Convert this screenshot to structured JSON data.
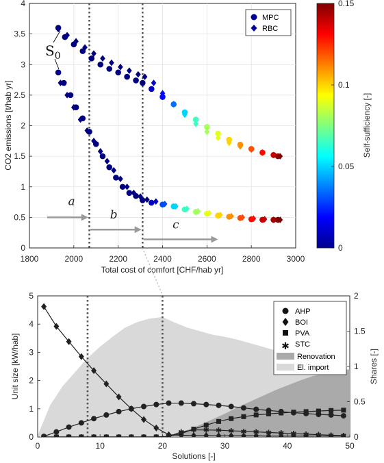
{
  "chart_data": [
    {
      "type": "scatter",
      "xlabel": "Total cost of comfort [CHF/hab yr]",
      "ylabel": "CO2 emissions [t/hab yr]",
      "xlim": [
        1800,
        3000
      ],
      "ylim": [
        0,
        4
      ],
      "xticks": [
        1800,
        2000,
        2200,
        2400,
        2600,
        2800,
        3000
      ],
      "yticks": [
        0,
        0.5,
        1,
        1.5,
        2,
        2.5,
        3,
        3.5,
        4
      ],
      "grid": true,
      "legend_position": "top-right",
      "colorbar": {
        "label": "Self-sufficiency [-]",
        "min": 0,
        "max": 0.15,
        "ticks": [
          0,
          0.05,
          0.1,
          0.15
        ]
      },
      "series": [
        {
          "name": "MPC",
          "marker": "circle",
          "upper": {
            "x": [
              1930,
              1960,
              2000,
              2040,
              2080,
              2120,
              2160,
              2200,
              2240,
              2280,
              2310,
              2350,
              2400,
              2450,
              2500,
              2550,
              2600,
              2650,
              2700,
              2750,
              2800,
              2850,
              2900,
              2920
            ],
            "y": [
              3.6,
              3.45,
              3.33,
              3.22,
              3.1,
              3.0,
              2.93,
              2.87,
              2.8,
              2.74,
              2.7,
              2.6,
              2.47,
              2.35,
              2.22,
              2.1,
              1.98,
              1.87,
              1.77,
              1.69,
              1.62,
              1.56,
              1.52,
              1.5
            ],
            "self_sufficiency": [
              0,
              0,
              0,
              0,
              0,
              0,
              0,
              0,
              0,
              0,
              0,
              0.01,
              0.02,
              0.035,
              0.05,
              0.065,
              0.08,
              0.09,
              0.1,
              0.11,
              0.12,
              0.13,
              0.14,
              0.145
            ]
          },
          "lower": {
            "x": [
              1930,
              1955,
              1985,
              2010,
              2040,
              2070,
              2100,
              2130,
              2160,
              2190,
              2220,
              2250,
              2280,
              2310,
              2350,
              2400,
              2450,
              2500,
              2550,
              2600,
              2650,
              2700,
              2750,
              2800,
              2850,
              2900,
              2920
            ],
            "y": [
              2.87,
              2.7,
              2.5,
              2.3,
              2.12,
              1.9,
              1.7,
              1.5,
              1.32,
              1.15,
              1.0,
              0.9,
              0.85,
              0.78,
              0.74,
              0.71,
              0.68,
              0.63,
              0.59,
              0.56,
              0.53,
              0.51,
              0.49,
              0.47,
              0.46,
              0.46,
              0.46
            ],
            "self_sufficiency": [
              0,
              0,
              0,
              0,
              0,
              0,
              0,
              0,
              0,
              0,
              0,
              0,
              0,
              0,
              0.01,
              0.03,
              0.05,
              0.065,
              0.08,
              0.09,
              0.1,
              0.11,
              0.12,
              0.13,
              0.14,
              0.145,
              0.15
            ]
          }
        },
        {
          "name": "RBC",
          "marker": "diamond",
          "upper": {
            "x": [
              1930,
              1970,
              2010,
              2050,
              2090,
              2130,
              2170,
              2210,
              2250,
              2290,
              2320,
              2360,
              2400,
              2450,
              2500,
              2550,
              2600,
              2650,
              2700,
              2750,
              2800,
              2850,
              2900,
              2930
            ],
            "y": [
              3.58,
              3.48,
              3.38,
              3.28,
              3.18,
              3.1,
              3.03,
              2.96,
              2.9,
              2.84,
              2.8,
              2.7,
              2.53,
              2.35,
              2.18,
              2.03,
              1.9,
              1.8,
              1.72,
              1.66,
              1.61,
              1.56,
              1.52,
              1.5
            ],
            "self_sufficiency": [
              0,
              0,
              0,
              0,
              0,
              0,
              0,
              0,
              0,
              0,
              0,
              0.01,
              0.02,
              0.035,
              0.05,
              0.065,
              0.08,
              0.09,
              0.1,
              0.11,
              0.12,
              0.13,
              0.14,
              0.15
            ]
          },
          "lower": {
            "x": [
              1940,
              1970,
              2000,
              2030,
              2060,
              2090,
              2120,
              2150,
              2180,
              2210,
              2240,
              2270,
              2300,
              2330,
              2370,
              2410,
              2460,
              2510,
              2560,
              2610,
              2660,
              2710,
              2760,
              2810,
              2860,
              2900,
              2930
            ],
            "y": [
              2.7,
              2.5,
              2.3,
              2.1,
              1.92,
              1.75,
              1.58,
              1.42,
              1.27,
              1.13,
              1.0,
              0.9,
              0.84,
              0.79,
              0.76,
              0.72,
              0.68,
              0.64,
              0.6,
              0.57,
              0.54,
              0.52,
              0.5,
              0.48,
              0.47,
              0.46,
              0.46
            ],
            "self_sufficiency": [
              0,
              0,
              0,
              0,
              0,
              0,
              0,
              0,
              0,
              0,
              0,
              0,
              0,
              0,
              0.01,
              0.03,
              0.05,
              0.065,
              0.08,
              0.09,
              0.1,
              0.11,
              0.12,
              0.13,
              0.14,
              0.145,
              0.15
            ]
          }
        }
      ],
      "annotations": {
        "s0_label": "S",
        "s0_sub": "0",
        "regions": [
          "a",
          "b",
          "c"
        ],
        "vlines_x": [
          2070,
          2310
        ]
      }
    },
    {
      "type": "line",
      "xlabel": "Solutions [-]",
      "ylabel": "Unit size [kW/hab]",
      "ylabel_right": "Shares [-]",
      "xlim": [
        0,
        50
      ],
      "ylim": [
        0,
        5
      ],
      "ylim_right": [
        0,
        2
      ],
      "xticks": [
        0,
        10,
        20,
        30,
        40,
        50
      ],
      "yticks": [
        0,
        1,
        2,
        3,
        4,
        5
      ],
      "yticks_right": [
        0,
        0.5,
        1,
        1.5,
        2
      ],
      "legend_position": "top-right",
      "vlines_x": [
        8,
        20
      ],
      "area_series": [
        {
          "name": "El. import",
          "color": "#d9d9d9",
          "x": [
            0,
            2,
            4,
            6,
            8,
            10,
            12,
            14,
            16,
            18,
            20,
            22,
            24,
            26,
            28,
            30,
            32,
            34,
            36,
            38,
            40,
            42,
            44,
            46,
            48,
            50
          ],
          "shares": [
            0.02,
            0.45,
            0.72,
            0.92,
            1.12,
            1.28,
            1.42,
            1.55,
            1.63,
            1.68,
            1.7,
            1.62,
            1.55,
            1.5,
            1.45,
            1.42,
            1.38,
            1.33,
            1.28,
            1.23,
            1.17,
            1.12,
            1.05,
            0.98,
            0.9,
            0.8
          ]
        },
        {
          "name": "Renovation",
          "color": "#aaaaaa",
          "x": [
            0,
            2,
            4,
            6,
            8,
            10,
            12,
            14,
            16,
            18,
            20,
            22,
            24,
            26,
            28,
            30,
            32,
            34,
            36,
            38,
            40,
            42,
            44,
            46,
            48,
            50
          ],
          "shares": [
            0,
            0,
            0,
            0,
            0,
            0,
            0,
            0,
            0,
            0,
            0,
            0.04,
            0.1,
            0.17,
            0.25,
            0.33,
            0.42,
            0.5,
            0.58,
            0.66,
            0.73,
            0.8,
            0.86,
            0.9,
            0.94,
            0.96
          ]
        }
      ],
      "series": [
        {
          "name": "AHP",
          "marker": "circle",
          "x": [
            1,
            3,
            5,
            7,
            9,
            11,
            13,
            15,
            17,
            19,
            21,
            23,
            25,
            27,
            29,
            31,
            33,
            35,
            37,
            39,
            41,
            43,
            45,
            47,
            49
          ],
          "y": [
            0.02,
            0.18,
            0.35,
            0.5,
            0.65,
            0.78,
            0.9,
            1.0,
            1.08,
            1.15,
            1.2,
            1.2,
            1.18,
            1.15,
            1.12,
            1.08,
            1.03,
            0.98,
            0.94,
            0.9,
            0.86,
            0.83,
            0.8,
            0.78,
            0.75
          ]
        },
        {
          "name": "BOI",
          "marker": "diamond",
          "x": [
            1,
            3,
            5,
            7,
            9,
            11,
            13,
            15,
            17,
            19,
            21,
            23,
            25,
            27,
            29,
            31,
            33,
            35,
            37,
            39,
            41,
            43,
            45,
            47,
            49
          ],
          "y": [
            4.62,
            3.92,
            3.38,
            2.85,
            2.35,
            1.88,
            1.42,
            1.0,
            0.62,
            0.32,
            0.08,
            0.06,
            0.05,
            0.05,
            0.04,
            0.04,
            0.04,
            0.04,
            0.03,
            0.03,
            0.03,
            0.03,
            0.03,
            0.03,
            0.03
          ]
        },
        {
          "name": "PVA",
          "marker": "square",
          "x": [
            1,
            3,
            5,
            7,
            9,
            11,
            13,
            15,
            17,
            19,
            21,
            23,
            25,
            27,
            29,
            31,
            33,
            35,
            37,
            39,
            41,
            43,
            45,
            47,
            49
          ],
          "y": [
            0,
            0,
            0,
            0,
            0,
            0,
            0,
            0,
            0,
            0,
            0.02,
            0.12,
            0.28,
            0.42,
            0.55,
            0.65,
            0.72,
            0.78,
            0.82,
            0.85,
            0.88,
            0.9,
            0.92,
            0.94,
            0.95
          ]
        },
        {
          "name": "STC",
          "marker": "star",
          "x": [
            1,
            3,
            5,
            7,
            9,
            11,
            13,
            15,
            17,
            19,
            21,
            23,
            25,
            27,
            29,
            31,
            33,
            35,
            37,
            39,
            41,
            43,
            45,
            47,
            49
          ],
          "y": [
            0,
            0,
            0,
            0,
            0,
            0,
            0,
            0,
            0,
            0,
            0.02,
            0.18,
            0.25,
            0.25,
            0.24,
            0.22,
            0.2,
            0.18,
            0.16,
            0.14,
            0.12,
            0.1,
            0.08,
            0.06,
            0.05
          ]
        }
      ]
    }
  ]
}
